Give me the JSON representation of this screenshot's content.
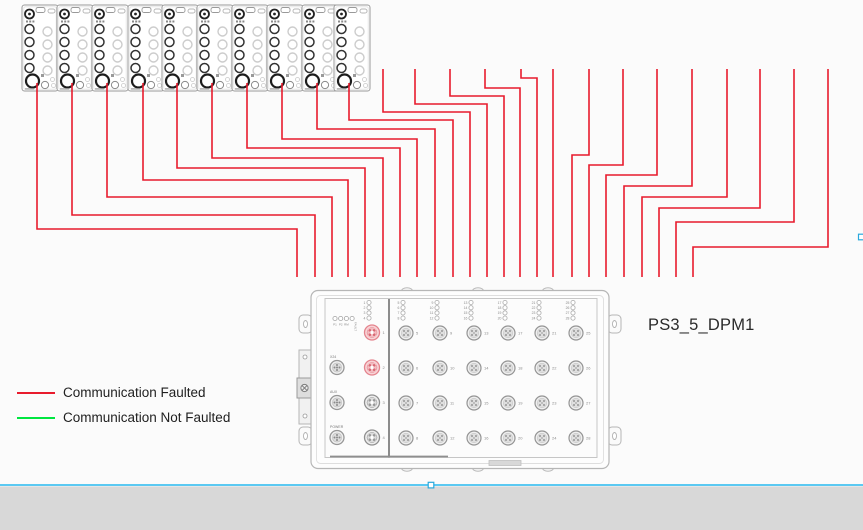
{
  "canvas": {
    "background": "#fbfbfb",
    "workspace_band_color": "#d8d8d8",
    "selection_line_color": "#5bc9f2",
    "selection_handle_border": "#29a8dc"
  },
  "title": {
    "text": "PS3_5_DPM1"
  },
  "legend": {
    "items": [
      {
        "label": "Communication Faulted",
        "color": "#e81b2d"
      },
      {
        "label": "Communication Not Faulted",
        "color": "#00e640"
      }
    ]
  },
  "modules": {
    "count": 10,
    "x_positions": [
      22,
      57,
      92,
      128,
      162,
      197,
      232,
      267,
      302,
      334
    ]
  },
  "wires": {
    "color": "#e81b2d",
    "status": "faulted",
    "lines": [
      "37,83 37,229 297,229 297,277",
      "72,83 72,215 315,215 315,277",
      "107,83 107,197 332,197 332,277",
      "143,83 143,180 348,180 348,277",
      "177,83 177,168 365,168 365,277",
      "212,83 212,158 383,158 383,277",
      "247,83 247,148 400,148 400,277",
      "282,83 282,139 417,139 417,277",
      "317,83 317,129 435,129 435,277",
      "349,83 349,120 453,120 453,277",
      "383,69 383,112 470,112 470,277",
      "415,69 415,104 487,104 487,277",
      "450,69 450,96 504,96 504,277",
      "485,69 485,88 520,88 520,277",
      "521,69 521,78 537,78 537,277",
      "553,69 553,277",
      "589,69 589,155 572,155 572,277",
      "623,69 623,165 589,165 589,277",
      "657,69 657,175 606,175 606,277",
      "692,69 692,186 624,186 624,277",
      "727,69 727,197 642,197 642,277",
      "760,69 760,208 659,208 659,277",
      "794,69 794,222 676,222 676,277",
      "828,69 828,247 693,247 693,277"
    ]
  },
  "device": {
    "status_leds": [
      "P1",
      "P2",
      "RM",
      "FAULT"
    ],
    "left_connectors": [
      "X24",
      "AUX",
      "POWER"
    ],
    "led_cluster_left": [
      1,
      2,
      3,
      4
    ],
    "left_ports": [
      {
        "id": 1,
        "faulted": true
      },
      {
        "id": 2,
        "faulted": true
      },
      {
        "id": 3,
        "faulted": false
      },
      {
        "id": 4,
        "faulted": false
      }
    ],
    "port_columns": [
      [
        5,
        6,
        7,
        8
      ],
      [
        9,
        10,
        11,
        12
      ],
      [
        13,
        14,
        15,
        16
      ],
      [
        17,
        18,
        19,
        20
      ],
      [
        21,
        22,
        23,
        24
      ],
      [
        25,
        26,
        27,
        28
      ]
    ],
    "port_fault_fill": "#f8d4d7",
    "port_fault_ring": "#e4838d",
    "port_fault_pin": "#d96974"
  }
}
